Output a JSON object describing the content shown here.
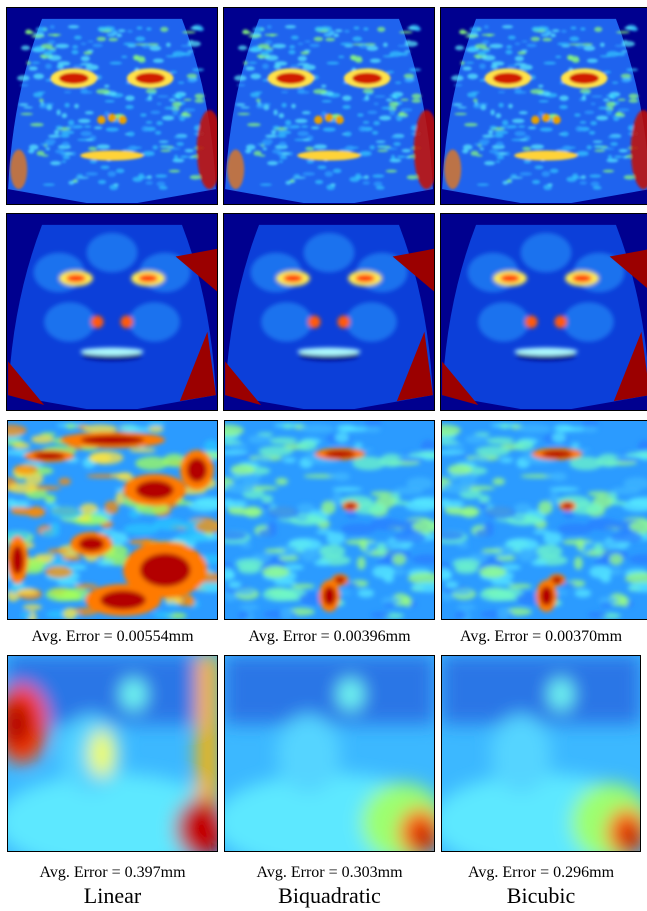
{
  "figure": {
    "columns": [
      "Linear",
      "Biquadratic",
      "Bicubic"
    ],
    "rows": [
      {
        "kind": "face-error-fine"
      },
      {
        "kind": "face-error-smooth"
      },
      {
        "kind": "zoom-fine",
        "errors": [
          "Avg. Error = 0.00554mm",
          "Avg. Error = 0.00396mm",
          "Avg. Error = 0.00370mm"
        ]
      },
      {
        "kind": "zoom-coarse",
        "errors": [
          "Avg. Error = 0.397mm",
          "Avg. Error = 0.303mm",
          "Avg. Error = 0.296mm"
        ]
      }
    ],
    "colormap": "jet",
    "background_color": "#00008f"
  }
}
